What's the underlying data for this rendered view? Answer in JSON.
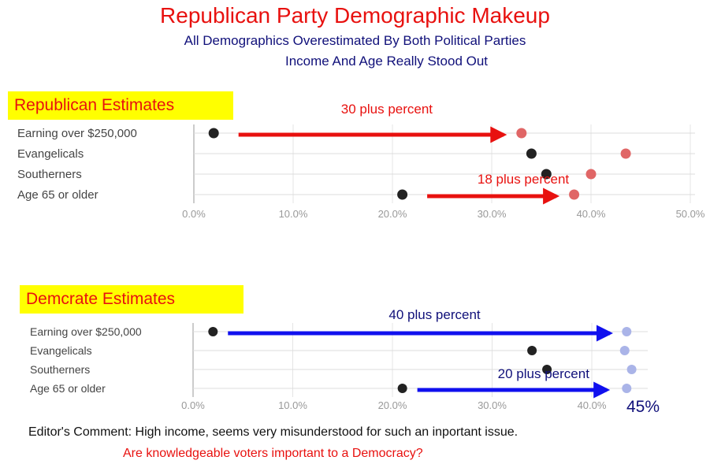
{
  "title": "Republican Party Demographic Makeup",
  "subtitle_1": "All Demographics Overestimated By Both Political Parties",
  "subtitle_2": "Income And Age Really Stood Out",
  "editor_comment": "Editor's Comment: High income, seems very misunderstood for such an inportant issue.",
  "question": "Are knowledgeable voters important to a Democracy?",
  "side_label": "45%",
  "colors": {
    "title": "#e8110f",
    "subtitle": "#10107a",
    "badge_bg": "#ffff00",
    "actual_dot": "#222222",
    "rep_estimate_dot": "#e06666",
    "dem_estimate_dot": "#aab4e8",
    "rep_arrow": "#e8110f",
    "dem_arrow": "#1010ee"
  },
  "chart_data": [
    {
      "type": "scatter",
      "subtype": "dumbbell",
      "title": "Republican Estimates",
      "categories": [
        "Earning over $250,000",
        "Evangelicals",
        "Southerners",
        "Age 65 or older"
      ],
      "xticks": [
        "0.0%",
        "10.0%",
        "20.0%",
        "30.0%",
        "40.0%",
        "50.0%"
      ],
      "xlim": [
        0,
        50
      ],
      "series": [
        {
          "values": [
            2.0,
            34.0,
            35.5,
            21.0
          ]
        },
        {
          "values": [
            33.0,
            43.5,
            40.0,
            38.3
          ]
        }
      ],
      "annotations": [
        {
          "text": "30 plus percent",
          "category": "Earning over $250,000",
          "from": 4.5,
          "to": 31.2
        },
        {
          "text": "18 plus percent",
          "category": "Age 65 or older",
          "from": 23.5,
          "to": 36.5
        }
      ]
    },
    {
      "type": "scatter",
      "subtype": "dumbbell",
      "title": "Demcrate Estimates",
      "categories": [
        "Earning over $250,000",
        "Evangelicals",
        "Southerners",
        "Age 65 or older"
      ],
      "xticks": [
        "0.0%",
        "10.0%",
        "20.0%",
        "30.0%",
        "40.0%"
      ],
      "xlim": [
        0,
        45
      ],
      "series": [
        {
          "values": [
            2.0,
            34.0,
            35.5,
            21.0
          ]
        },
        {
          "values": [
            43.5,
            43.3,
            44.0,
            43.5
          ]
        }
      ],
      "annotations": [
        {
          "text": "40 plus percent",
          "category": "Earning over $250,000",
          "from": 3.5,
          "to": 41.8
        },
        {
          "text": "20 plus percent",
          "category": "Age 65 or older",
          "from": 22.5,
          "to": 41.5
        }
      ]
    }
  ]
}
